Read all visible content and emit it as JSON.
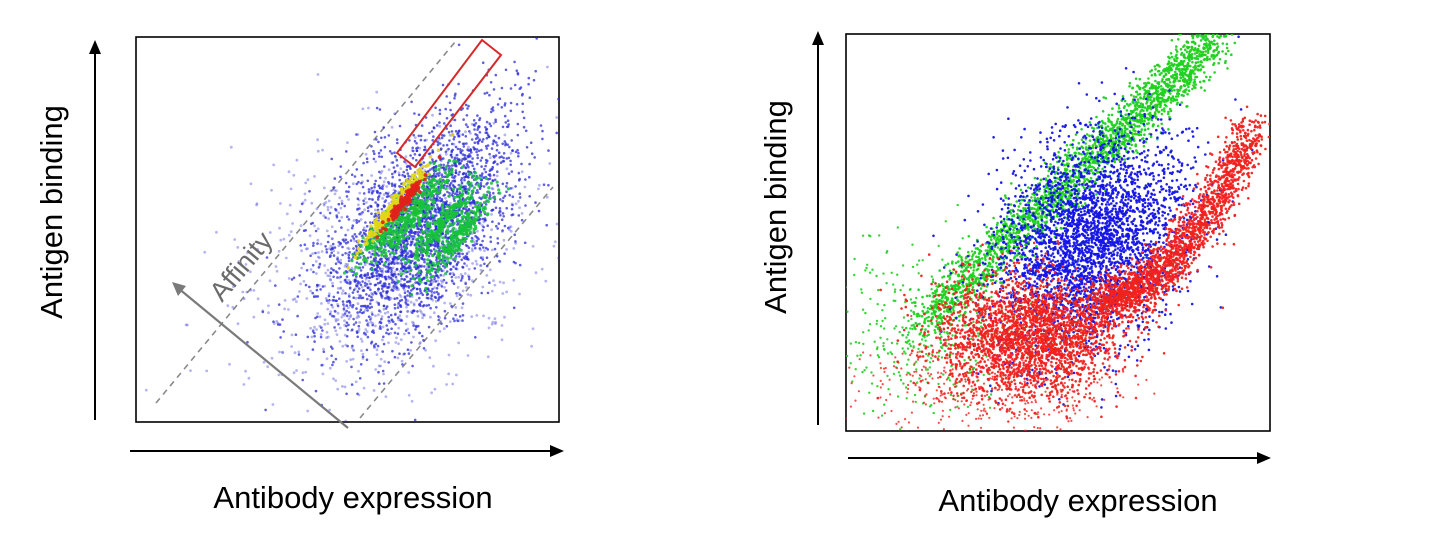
{
  "chart_data": [
    {
      "type": "scatter",
      "style": "density",
      "xlabel": "Antibody expression",
      "ylabel": "Antigen binding",
      "annotation": "Affinity",
      "axis_ticks": "none",
      "grid": false,
      "colors": {
        "low_density": "#2b2bd8",
        "mid_density": "#16c23a",
        "mid_high_density": "#e2d61a",
        "high_density": "#e0211d",
        "gate": "#d8282a",
        "diagonal_guides": "#8a8a8a",
        "affinity_arrow": "#7a7a7a"
      }
    },
    {
      "type": "scatter",
      "xlabel": "Antibody expression",
      "ylabel": "Antigen binding",
      "axis_ticks": "none",
      "grid": false,
      "series_colors": [
        "#1fd11f",
        "#1515e6",
        "#f0221f"
      ]
    }
  ]
}
